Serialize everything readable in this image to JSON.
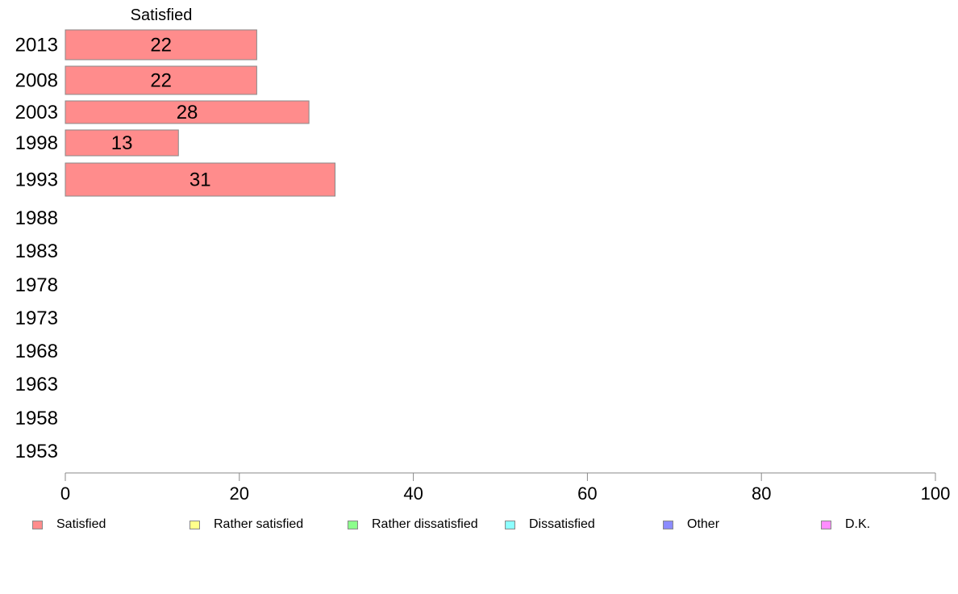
{
  "chart_data": {
    "type": "bar",
    "orientation": "horizontal",
    "title": "",
    "xlabel": "",
    "ylabel": "",
    "categories": [
      "2013",
      "2008",
      "2003",
      "1998",
      "1993",
      "1988",
      "1983",
      "1978",
      "1973",
      "1968",
      "1963",
      "1958",
      "1953"
    ],
    "series": [
      {
        "name": "Satisfied",
        "color": "#ff8c8c",
        "values": [
          22,
          22,
          28,
          13,
          31,
          null,
          null,
          null,
          null,
          null,
          null,
          null,
          null
        ]
      },
      {
        "name": "Rather satisfied",
        "color": "#ffff8c",
        "values": [
          null,
          null,
          null,
          null,
          null,
          null,
          null,
          null,
          null,
          null,
          null,
          null,
          null
        ]
      },
      {
        "name": "Rather dissatisfied",
        "color": "#8cff8c",
        "values": [
          null,
          null,
          null,
          null,
          null,
          null,
          null,
          null,
          null,
          null,
          null,
          null,
          null
        ]
      },
      {
        "name": "Dissatisfied",
        "color": "#8cffff",
        "values": [
          null,
          null,
          null,
          null,
          null,
          null,
          null,
          null,
          null,
          null,
          null,
          null,
          null
        ]
      },
      {
        "name": "Other",
        "color": "#8c8cff",
        "values": [
          null,
          null,
          null,
          null,
          null,
          null,
          null,
          null,
          null,
          null,
          null,
          null,
          null
        ]
      },
      {
        "name": "D.K.",
        "color": "#ff8cff",
        "values": [
          null,
          null,
          null,
          null,
          null,
          null,
          null,
          null,
          null,
          null,
          null,
          null,
          null
        ]
      }
    ],
    "stacked": true,
    "column_header": "Satisfied",
    "xlim": [
      0,
      100
    ],
    "xticks": [
      "0",
      "20",
      "40",
      "60",
      "80",
      "100"
    ],
    "grid": false,
    "legend_position": "bottom"
  }
}
